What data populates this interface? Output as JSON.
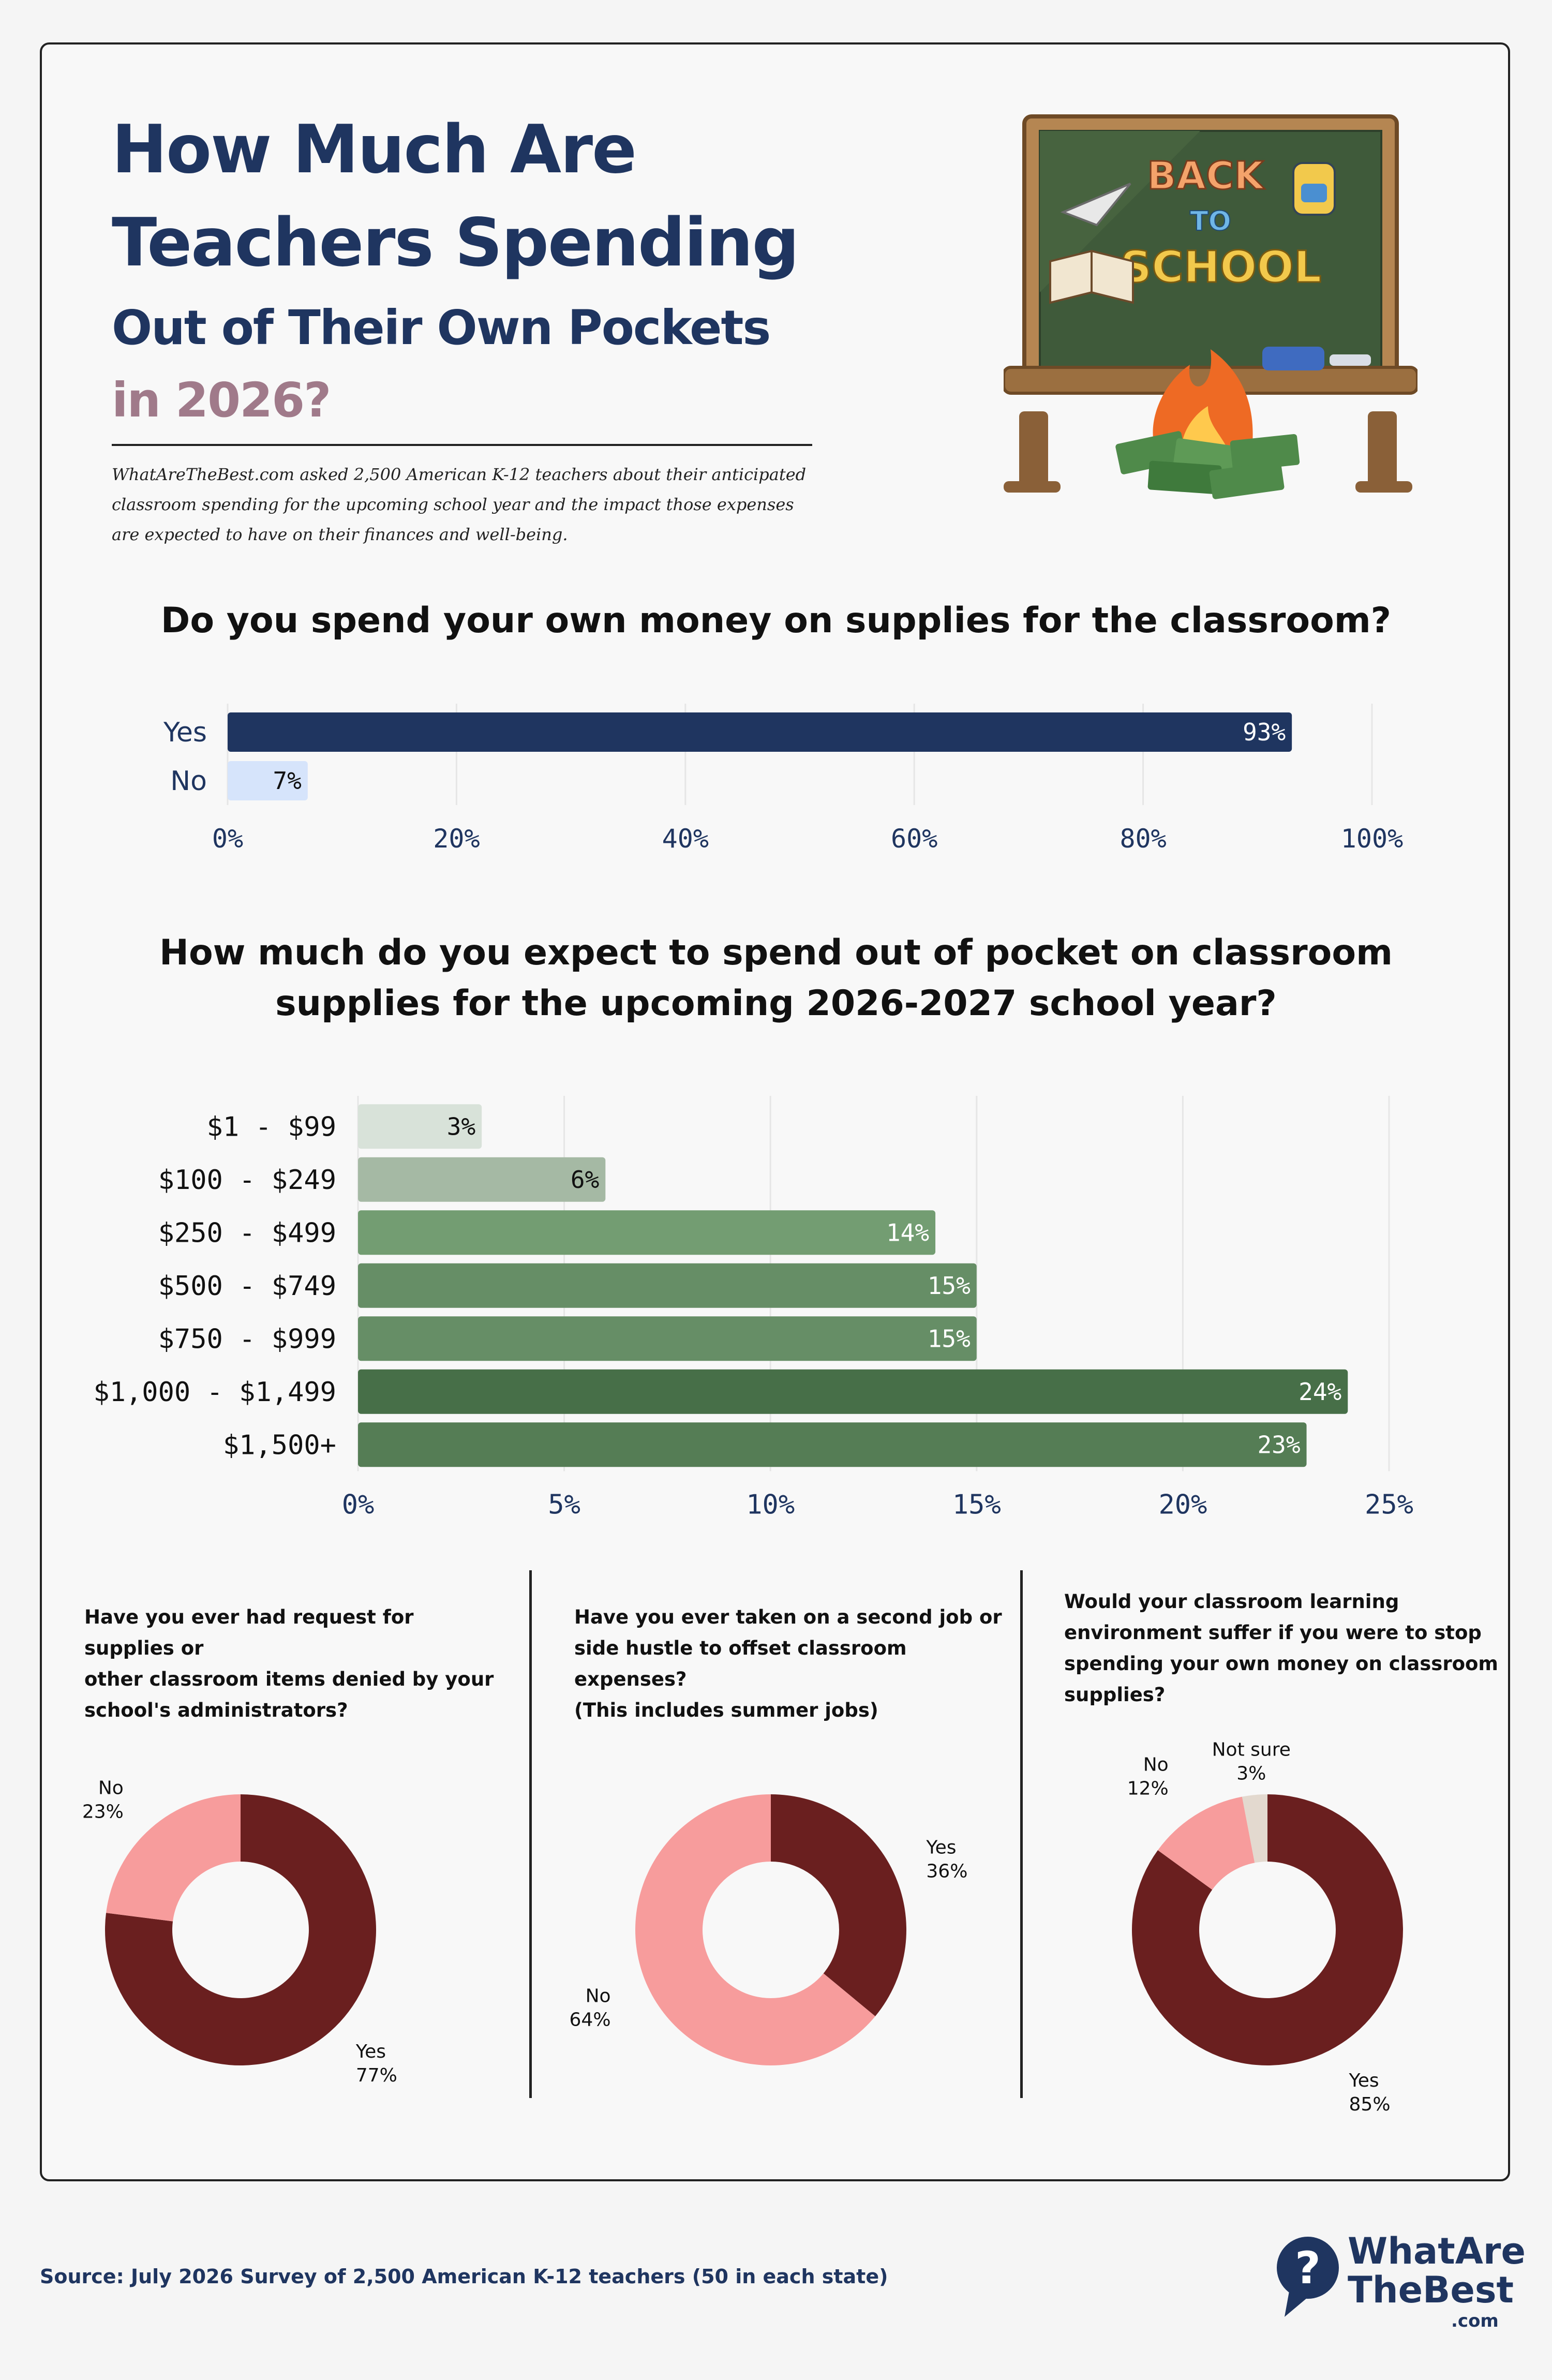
{
  "header": {
    "title_line1": "How Much Are",
    "title_line2": "Teachers Spending",
    "title_line3": "Out of Their Own Pockets",
    "title_line4": "in 2026?",
    "intro_line1": "WhatAreTheBest.com asked 2,500 American K-12 teachers about their anticipated",
    "intro_line2": "classroom spending for the upcoming school year and the impact those expenses",
    "intro_line3": "are expected to have on their finances and well-being."
  },
  "illustration": {
    "line1": "BACK",
    "line2": "TO",
    "line3": "SCHOOL"
  },
  "footer": {
    "source": "Source: July 2026 Survey of 2,500 American K-12 teachers (50 in each state)",
    "brand_line1": "WhatAre",
    "brand_line2": "TheBest",
    "brand_suffix": ".com"
  },
  "colors": {
    "navy": "#1f3560",
    "light_blue": "#d6e4fb",
    "maroon": "#6a1f1f",
    "pink": "#f79c9c",
    "beige": "#e3d9cf"
  },
  "chart_data": [
    {
      "type": "bar",
      "orientation": "horizontal",
      "title": "Do you spend your own money on supplies for the classroom?",
      "categories": [
        "Yes",
        "No"
      ],
      "values": [
        93,
        7
      ],
      "value_labels": [
        "93%",
        "7%"
      ],
      "colors": [
        "#1f3560",
        "#d6e4fb"
      ],
      "label_colors": [
        "#ffffff",
        "#111111"
      ],
      "xlim": [
        0,
        100
      ],
      "xticks": [
        "0%",
        "20%",
        "40%",
        "60%",
        "80%",
        "100%"
      ],
      "grid": true
    },
    {
      "type": "bar",
      "orientation": "horizontal",
      "title_line1": "How much do you expect to spend out of pocket on classroom",
      "title_line2": "supplies for the upcoming 2026-2027 school year?",
      "categories": [
        "$1 - $99",
        "$100 - $249",
        "$250 - $499",
        "$500 - $749",
        "$750 - $999",
        "$1,000 - $1,499",
        "$1,500+"
      ],
      "values": [
        3,
        6,
        14,
        15,
        15,
        24,
        23
      ],
      "value_labels": [
        "3%",
        "6%",
        "14%",
        "15%",
        "15%",
        "24%",
        "23%"
      ],
      "colors": [
        "#d8e2d9",
        "#a5b9a4",
        "#739d72",
        "#668e66",
        "#668e66",
        "#476f48",
        "#557d55"
      ],
      "label_colors": [
        "#111111",
        "#111111",
        "#ffffff",
        "#ffffff",
        "#ffffff",
        "#ffffff",
        "#ffffff"
      ],
      "xlim": [
        0,
        25
      ],
      "xticks": [
        "0%",
        "5%",
        "10%",
        "15%",
        "20%",
        "25%"
      ],
      "grid": true
    },
    {
      "type": "pie",
      "donut": true,
      "title_line1": "Have you ever had request for supplies or",
      "title_line2": "other classroom items denied by your",
      "title_line3": "school's administrators?",
      "slices": [
        {
          "label": "Yes",
          "value": 77,
          "value_label": "77%",
          "color": "#6a1f1f"
        },
        {
          "label": "No",
          "value": 23,
          "value_label": "23%",
          "color": "#f79c9c"
        }
      ]
    },
    {
      "type": "pie",
      "donut": true,
      "title_line1": "Have you ever taken on a second job or",
      "title_line2": "side hustle to offset classroom expenses?",
      "title_line3": "(This includes summer jobs)",
      "slices": [
        {
          "label": "Yes",
          "value": 36,
          "value_label": "36%",
          "color": "#6a1f1f"
        },
        {
          "label": "No",
          "value": 64,
          "value_label": "64%",
          "color": "#f79c9c"
        }
      ]
    },
    {
      "type": "pie",
      "donut": true,
      "title_line1": "Would your classroom learning",
      "title_line2": "environment suffer if you were to stop",
      "title_line3": "spending your own money on classroom",
      "title_line4": "supplies?",
      "slices": [
        {
          "label": "Yes",
          "value": 85,
          "value_label": "85%",
          "color": "#6a1f1f"
        },
        {
          "label": "No",
          "value": 12,
          "value_label": "12%",
          "color": "#f79c9c"
        },
        {
          "label": "Not sure",
          "value": 3,
          "value_label": "3%",
          "color": "#e3d9cf"
        }
      ]
    }
  ]
}
